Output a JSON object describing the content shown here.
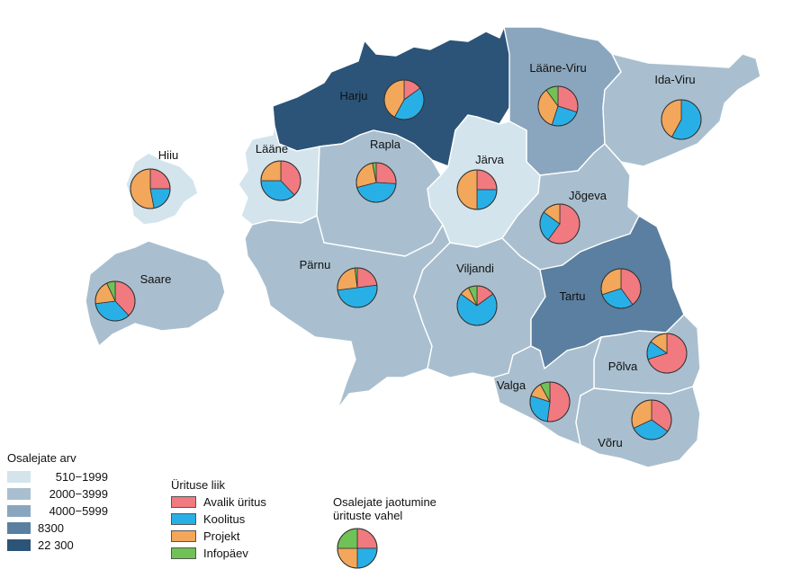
{
  "colors": {
    "c510": "#d4e4ec",
    "c2000": "#a9bfcf",
    "c4000": "#8aa6be",
    "c8300": "#5a7fa0",
    "c22300": "#2c5478",
    "avalik": "#f07a80",
    "koolitus": "#28b0e6",
    "projekt": "#f3a75b",
    "infopaev": "#70c156"
  },
  "legend_participants": {
    "title": "Osalejate arv",
    "items": [
      {
        "label": "510−1999",
        "color": "#d4e4ec"
      },
      {
        "label": "2000−3999",
        "color": "#a9bfcf"
      },
      {
        "label": "4000−5999",
        "color": "#8aa6be"
      },
      {
        "label": "8300",
        "color": "#5a7fa0"
      },
      {
        "label": "22 300",
        "color": "#2c5478"
      }
    ]
  },
  "legend_event": {
    "title": "Ürituse liik",
    "items": [
      {
        "label": "Avalik üritus",
        "color": "#f07a80"
      },
      {
        "label": "Koolitus",
        "color": "#28b0e6"
      },
      {
        "label": "Projekt",
        "color": "#f3a75b"
      },
      {
        "label": "Infopäev",
        "color": "#70c156"
      }
    ]
  },
  "legend_pie": {
    "title_line1": "Osalejate jaotumine",
    "title_line2": "ürituste vahel"
  },
  "counties": [
    {
      "name": "Harju",
      "class": "22 300",
      "shares": {
        "avalik": 0.15,
        "koolitus": 0.43,
        "projekt": 0.42,
        "infopaev": 0.0
      }
    },
    {
      "name": "Lääne-Viru",
      "class": "4000−5999",
      "shares": {
        "avalik": 0.3,
        "koolitus": 0.25,
        "projekt": 0.35,
        "infopaev": 0.1
      }
    },
    {
      "name": "Ida-Viru",
      "class": "2000−3999",
      "shares": {
        "avalik": 0.0,
        "koolitus": 0.58,
        "projekt": 0.42,
        "infopaev": 0.0
      }
    },
    {
      "name": "Hiiu",
      "class": "510−1999",
      "shares": {
        "avalik": 0.25,
        "koolitus": 0.22,
        "projekt": 0.53,
        "infopaev": 0.0
      }
    },
    {
      "name": "Lääne",
      "class": "510−1999",
      "shares": {
        "avalik": 0.38,
        "koolitus": 0.37,
        "projekt": 0.25,
        "infopaev": 0.0
      }
    },
    {
      "name": "Rapla",
      "class": "2000−3999",
      "shares": {
        "avalik": 0.26,
        "koolitus": 0.45,
        "projekt": 0.26,
        "infopaev": 0.03
      }
    },
    {
      "name": "Järva",
      "class": "510−1999",
      "shares": {
        "avalik": 0.25,
        "koolitus": 0.25,
        "projekt": 0.5,
        "infopaev": 0.0
      }
    },
    {
      "name": "Jõgeva",
      "class": "2000−3999",
      "shares": {
        "avalik": 0.6,
        "koolitus": 0.25,
        "projekt": 0.15,
        "infopaev": 0.0
      }
    },
    {
      "name": "Saare",
      "class": "2000−3999",
      "shares": {
        "avalik": 0.38,
        "koolitus": 0.35,
        "projekt": 0.2,
        "infopaev": 0.07
      }
    },
    {
      "name": "Pärnu",
      "class": "2000−3999",
      "shares": {
        "avalik": 0.23,
        "koolitus": 0.5,
        "projekt": 0.25,
        "infopaev": 0.02
      }
    },
    {
      "name": "Viljandi",
      "class": "2000−3999",
      "shares": {
        "avalik": 0.15,
        "koolitus": 0.7,
        "projekt": 0.08,
        "infopaev": 0.07
      }
    },
    {
      "name": "Tartu",
      "class": "8300",
      "shares": {
        "avalik": 0.4,
        "koolitus": 0.3,
        "projekt": 0.3,
        "infopaev": 0.0
      }
    },
    {
      "name": "Põlva",
      "class": "2000−3999",
      "shares": {
        "avalik": 0.7,
        "koolitus": 0.15,
        "projekt": 0.15,
        "infopaev": 0.0
      }
    },
    {
      "name": "Valga",
      "class": "2000−3999",
      "shares": {
        "avalik": 0.52,
        "koolitus": 0.28,
        "projekt": 0.12,
        "infopaev": 0.08
      }
    },
    {
      "name": "Võru",
      "class": "2000−3999",
      "shares": {
        "avalik": 0.35,
        "koolitus": 0.33,
        "projekt": 0.32,
        "infopaev": 0.0
      }
    }
  ],
  "legend_pie_shares": {
    "avalik": 0.25,
    "koolitus": 0.25,
    "projekt": 0.25,
    "infopaev": 0.25
  }
}
